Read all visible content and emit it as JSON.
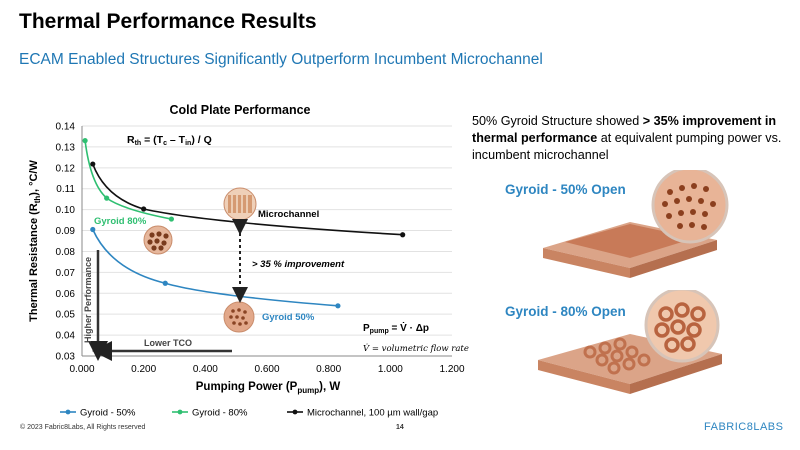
{
  "slide": {
    "title": "Thermal Performance Results",
    "subtitle": "ECAM Enabled Structures Significantly Outperform Incumbent Microchannel",
    "footer_copyright": "© 2023 Fabric8Labs, All Rights reserved",
    "page_number": "14",
    "logo_text": "FABRIC8LABS"
  },
  "callout": {
    "text_before": "50% Gyroid Structure showed ",
    "text_bold": "> 35% improvement in thermal performance",
    "text_after": " at equivalent pumping power vs. incumbent microchannel"
  },
  "images": {
    "gyroid50_label": "Gyroid - 50% Open",
    "gyroid80_label": "Gyroid - 80% Open"
  },
  "colors": {
    "gyroid50": "#2e86c1",
    "gyroid80": "#2fbf71",
    "microchannel": "#111111",
    "copper": "#d98a62"
  },
  "chart_data": {
    "type": "line",
    "title": "Cold Plate Performance",
    "xlabel": "Pumping Power (P",
    "xlabel_sub": "pump",
    "xlabel_tail": "), W",
    "ylabel": "Thermal Resistance (R",
    "ylabel_sub": "th",
    "ylabel_tail": "),  °C/W",
    "xlim": [
      0,
      1.2
    ],
    "ylim": [
      0.03,
      0.14
    ],
    "xticks": [
      "0.000",
      "0.200",
      "0.400",
      "0.600",
      "0.800",
      "1.000",
      "1.200"
    ],
    "yticks": [
      "0.03",
      "0.04",
      "0.05",
      "0.06",
      "0.07",
      "0.08",
      "0.09",
      "0.10",
      "0.11",
      "0.12",
      "0.13",
      "0.14"
    ],
    "legend_position": "bottom",
    "series": [
      {
        "name": "Gyroid - 50%",
        "color": "#2e86c1",
        "x": [
          0.035,
          0.27,
          0.83
        ],
        "y": [
          0.0905,
          0.0648,
          0.054
        ]
      },
      {
        "name": "Gyroid - 80%",
        "color": "#2fbf71",
        "x": [
          0.01,
          0.08,
          0.29
        ],
        "y": [
          0.133,
          0.1055,
          0.0955
        ]
      },
      {
        "name": "Microchannel, 100 µm wall/gap",
        "color": "#111111",
        "x": [
          0.035,
          0.2,
          1.04
        ],
        "y": [
          0.1218,
          0.1003,
          0.088
        ]
      }
    ],
    "annotations": {
      "formula_rth": "R",
      "formula_rth_sub": "th",
      "formula_rth_rest": " = (T",
      "formula_c_sub": "c",
      "formula_mid": " – T",
      "formula_in_sub": "in",
      "formula_end": ") / Q",
      "label_gyroid80": "Gyroid 80%",
      "label_gyroid50": "Gyroid 50%",
      "label_microchannel": "Microchannel",
      "improvement": "> 35 % improvement",
      "higher_performance": "Higher Performance",
      "lower_tco": "Lower TCO",
      "ppump_lhs": "P",
      "ppump_sub": "pump",
      "ppump_rhs": " = V̇  · Δp",
      "flow_rate_note": "V̇ =  volumetric flow rate"
    }
  }
}
